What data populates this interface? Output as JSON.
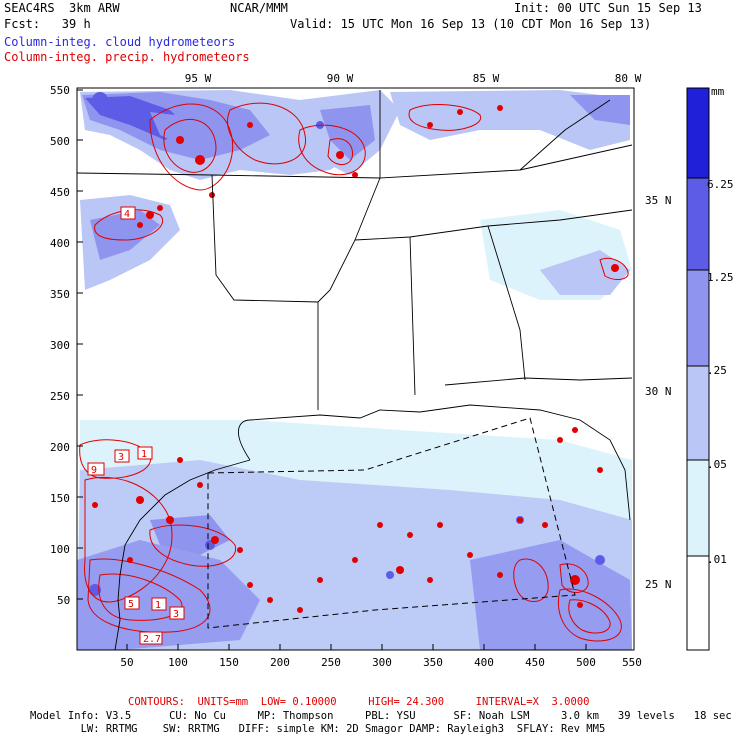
{
  "header": {
    "model": "SEAC4RS  3km ARW",
    "center": "NCAR/MMM",
    "init": "Init: 00 UTC Sun 15 Sep 13",
    "fcst": "Fcst:   39 h",
    "valid": "Valid: 15 UTC Mon 16 Sep 13 (10 CDT Mon 16 Sep 13)",
    "field_blue": "Column-integ. cloud hydrometeors",
    "field_red": "Column-integ. precip. hydrometeors"
  },
  "map": {
    "lon_labels": [
      "95 W",
      "90 W",
      "85 W",
      "80 W"
    ],
    "lat_labels": [
      "35 N",
      "30 N",
      "25 N"
    ],
    "y_ticks": [
      "550",
      "500",
      "450",
      "400",
      "350",
      "300",
      "250",
      "200",
      "150",
      "100",
      "50"
    ],
    "x_ticks": [
      "50",
      "100",
      "150",
      "200",
      "250",
      "300",
      "350",
      "400",
      "450",
      "500",
      "550"
    ],
    "contour_labels": [
      "4",
      "3",
      "1",
      "9",
      "5",
      "1",
      "3",
      "2.7"
    ]
  },
  "colorbar": {
    "unit": "mm",
    "levels": [
      "6.25",
      "1.25",
      ".25",
      ".05",
      ".01"
    ],
    "colors": [
      "#2020d8",
      "#5c5ce6",
      "#8f94ee",
      "#b9c6f6",
      "#ddf3fb",
      "#ffffff"
    ]
  },
  "footer": {
    "contours": "CONTOURS:  UNITS=mm  LOW= 0.10000     HIGH= 24.300     INTERVAL=X  3.0000",
    "line1": "Model Info: V3.5      CU: No Cu     MP: Thompson     PBL: YSU      SF: Noah LSM     3.0 km   39 levels   18 sec",
    "line2": "        LW: RRTMG    SW: RRTMG   DIFF: simple KM: 2D Smagor DAMP: Rayleigh3  SFLAY: Rev MM5"
  }
}
